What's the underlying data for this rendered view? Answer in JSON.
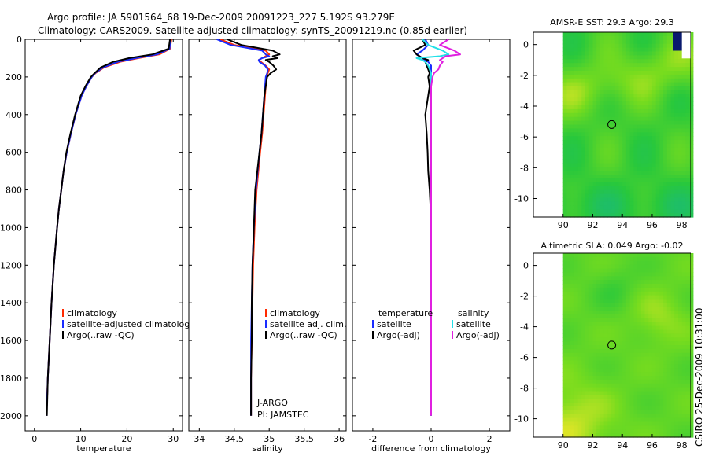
{
  "header": {
    "line1": "Argo profile: JA 5901564_68 19-Dec-2009 20091223_227 5.192S 93.279E",
    "line2": "Climatology: CARS2009. Satellite-adjusted climatology: synTS_20091219.nc (0.85d earlier)"
  },
  "side_label": "CSIRO 25-Dec-2009 10:31:00",
  "colors": {
    "clim": "#ff2a00",
    "sat": "#1a2cff",
    "argo": "#000000",
    "sal_sat": "#22e0e8",
    "sal_argo": "#e020e0"
  },
  "chart_data": [
    {
      "type": "line",
      "name": "temperature-profile",
      "xlabel": "temperature",
      "ylabel": "",
      "xlim": [
        -2,
        32
      ],
      "ylim": [
        2080,
        0
      ],
      "xticks": [
        0,
        10,
        20,
        30
      ],
      "xtick_labels": [
        "0",
        "10",
        "20",
        "30"
      ],
      "yticks": [
        0,
        200,
        400,
        600,
        800,
        1000,
        1200,
        1400,
        1600,
        1800,
        2000
      ],
      "ytick_labels": [
        "0",
        "200",
        "400",
        "600",
        "800",
        "1000",
        "1200",
        "1400",
        "1600",
        "1800",
        "2000"
      ],
      "depth": [
        0,
        50,
        80,
        100,
        120,
        150,
        180,
        200,
        250,
        300,
        400,
        500,
        600,
        700,
        800,
        900,
        1000,
        1200,
        1400,
        1600,
        1800,
        2000
      ],
      "series": [
        {
          "name": "climatology",
          "color": "#ff2a00",
          "values": [
            29.6,
            29.3,
            27.0,
            22.5,
            18.5,
            15.0,
            13.2,
            12.4,
            11.2,
            10.2,
            8.9,
            7.9,
            7.0,
            6.3,
            5.8,
            5.3,
            4.9,
            4.2,
            3.7,
            3.3,
            2.9,
            2.6
          ]
        },
        {
          "name": "satellite-adjusted climatology",
          "color": "#1a2cff",
          "values": [
            29.4,
            29.2,
            26.5,
            22.0,
            18.0,
            14.8,
            13.1,
            12.4,
            11.2,
            10.2,
            8.9,
            7.9,
            7.0,
            6.3,
            5.8,
            5.3,
            4.9,
            4.2,
            3.7,
            3.3,
            2.9,
            2.6
          ]
        },
        {
          "name": "Argo(..raw -QC)",
          "color": "#000000",
          "values": [
            29.3,
            29.0,
            25.5,
            20.5,
            17.0,
            14.3,
            13.0,
            12.2,
            11.0,
            10.0,
            8.8,
            7.8,
            6.9,
            6.3,
            5.8,
            5.3,
            4.9,
            4.2,
            3.7,
            3.3,
            2.9,
            2.7
          ]
        }
      ],
      "legend": [
        "climatology",
        "satellite-adjusted climatology",
        "Argo(..raw -QC)"
      ],
      "legend_display": [
        "climatology",
        "satellite-adjusted climatolog",
        "Argo(..raw -QC)"
      ],
      "legend_placement": "lower-right"
    },
    {
      "type": "line",
      "name": "salinity-profile",
      "xlabel": "salinity",
      "xlim": [
        33.85,
        36.1
      ],
      "ylim": [
        2080,
        0
      ],
      "xticks": [
        34,
        34.5,
        35,
        35.5,
        36
      ],
      "xtick_labels": [
        "34",
        "34.5",
        "35",
        "35.5",
        "36"
      ],
      "depth": [
        0,
        30,
        60,
        80,
        90,
        100,
        110,
        120,
        140,
        160,
        180,
        200,
        250,
        300,
        400,
        500,
        600,
        800,
        1000,
        1200,
        1400,
        1600,
        1800,
        2000
      ],
      "series": [
        {
          "name": "climatology",
          "color": "#ff2a00",
          "values": [
            34.3,
            34.5,
            34.95,
            35.0,
            34.95,
            34.9,
            34.85,
            34.88,
            34.95,
            35.0,
            34.98,
            34.96,
            34.95,
            34.94,
            34.92,
            34.9,
            34.87,
            34.82,
            34.79,
            34.77,
            34.76,
            34.75,
            34.74,
            34.74
          ]
        },
        {
          "name": "satellite adj. clim.",
          "color": "#1a2cff",
          "values": [
            34.25,
            34.45,
            34.9,
            34.95,
            35.0,
            34.9,
            34.85,
            34.86,
            34.94,
            34.98,
            34.97,
            34.95,
            34.94,
            34.93,
            34.91,
            34.89,
            34.86,
            34.81,
            34.78,
            34.76,
            34.75,
            34.74,
            34.74,
            34.74
          ]
        },
        {
          "name": "Argo(..raw -QC)",
          "color": "#000000",
          "values": [
            34.4,
            34.6,
            35.05,
            35.15,
            35.05,
            35.12,
            34.95,
            35.0,
            35.06,
            35.1,
            35.02,
            34.97,
            34.95,
            34.93,
            34.91,
            34.89,
            34.86,
            34.8,
            34.78,
            34.76,
            34.75,
            34.75,
            34.74,
            34.74
          ]
        }
      ],
      "legend": [
        "climatology",
        "satellite adj. clim.",
        "Argo(..raw -QC)"
      ],
      "legend_placement": "lower-right",
      "annotations": [
        "J-ARGO",
        "PI: JAMSTEC"
      ]
    },
    {
      "type": "line",
      "name": "difference-profile",
      "xlabel": "difference from climatology",
      "xlim": [
        -2.7,
        2.7
      ],
      "ylim": [
        2080,
        0
      ],
      "xticks": [
        -2,
        0,
        2
      ],
      "xtick_labels": [
        "-2",
        "0",
        "2"
      ],
      "depth": [
        0,
        30,
        60,
        80,
        90,
        100,
        110,
        120,
        140,
        160,
        180,
        200,
        250,
        300,
        400,
        500,
        600,
        700,
        800,
        900,
        1000,
        1200,
        1400,
        1600,
        1800,
        2000
      ],
      "series": [
        {
          "name": "temperature satellite",
          "color": "#1a2cff",
          "values": [
            -0.2,
            -0.1,
            -0.3,
            -0.5,
            -0.4,
            -0.3,
            -0.2,
            -0.1,
            0,
            0,
            0,
            0,
            0,
            0,
            0,
            0,
            0,
            0,
            0,
            0,
            0,
            0,
            0,
            0,
            0,
            0
          ]
        },
        {
          "name": "temperature Argo(-adj)",
          "color": "#000000",
          "values": [
            -0.3,
            -0.2,
            -0.6,
            -0.5,
            -0.4,
            -0.3,
            -0.1,
            -0.2,
            -0.15,
            -0.1,
            -0.05,
            -0.1,
            -0.05,
            -0.1,
            -0.2,
            -0.15,
            -0.12,
            -0.1,
            -0.05,
            -0.02,
            0,
            0,
            -0.02,
            0,
            0,
            0
          ]
        },
        {
          "name": "salinity satellite",
          "color": "#22e0e8",
          "values": [
            -0.3,
            -0.1,
            0.4,
            0.6,
            0.3,
            -0.5,
            -0.3,
            -0.2,
            -0.1,
            -0.05,
            0,
            0,
            0,
            0,
            0,
            0,
            0,
            0,
            0,
            0,
            0,
            0,
            0,
            0,
            0,
            0
          ]
        },
        {
          "name": "salinity Argo(-adj)",
          "color": "#e020e0",
          "values": [
            0.6,
            0.3,
            0.8,
            1.0,
            0.5,
            0.4,
            0.3,
            0.4,
            0.3,
            0.25,
            0.1,
            0.05,
            0,
            0,
            0,
            0,
            0,
            0,
            0,
            0,
            0,
            0,
            0,
            0,
            0,
            0
          ]
        }
      ],
      "legend_headers": [
        "temperature",
        "salinity"
      ],
      "legend": [
        "satellite",
        "Argo(-adj)",
        "satellite",
        "Argo(-adj)"
      ],
      "legend_placement": "lower-right"
    },
    {
      "type": "heatmap",
      "name": "amsre-sst-map",
      "title": "AMSR-E SST: 29.3 Argo: 29.3",
      "xlim": [
        88,
        98.6
      ],
      "ylim": [
        -11.2,
        0.8
      ],
      "xticks": [
        90,
        92,
        94,
        96,
        98
      ],
      "xtick_labels": [
        "90",
        "92",
        "94",
        "96",
        "98"
      ],
      "yticks": [
        0,
        -2,
        -4,
        -6,
        -8,
        -10
      ],
      "ytick_labels": [
        "0",
        "-2",
        "-4",
        "-6",
        "-8",
        "-10"
      ],
      "argo_position": [
        93.279,
        -5.192
      ]
    },
    {
      "type": "heatmap",
      "name": "altimetric-sla-map",
      "title": "Altimetric SLA: 0.049 Argo: -0.02",
      "xlim": [
        88,
        98.6
      ],
      "ylim": [
        -11.2,
        0.8
      ],
      "xticks": [
        90,
        92,
        94,
        96,
        98
      ],
      "xtick_labels": [
        "90",
        "92",
        "94",
        "96",
        "98"
      ],
      "yticks": [
        0,
        -2,
        -4,
        -6,
        -8,
        -10
      ],
      "ytick_labels": [
        "0",
        "-2",
        "-4",
        "-6",
        "-8",
        "-10"
      ],
      "argo_position": [
        93.279,
        -5.192
      ]
    }
  ]
}
